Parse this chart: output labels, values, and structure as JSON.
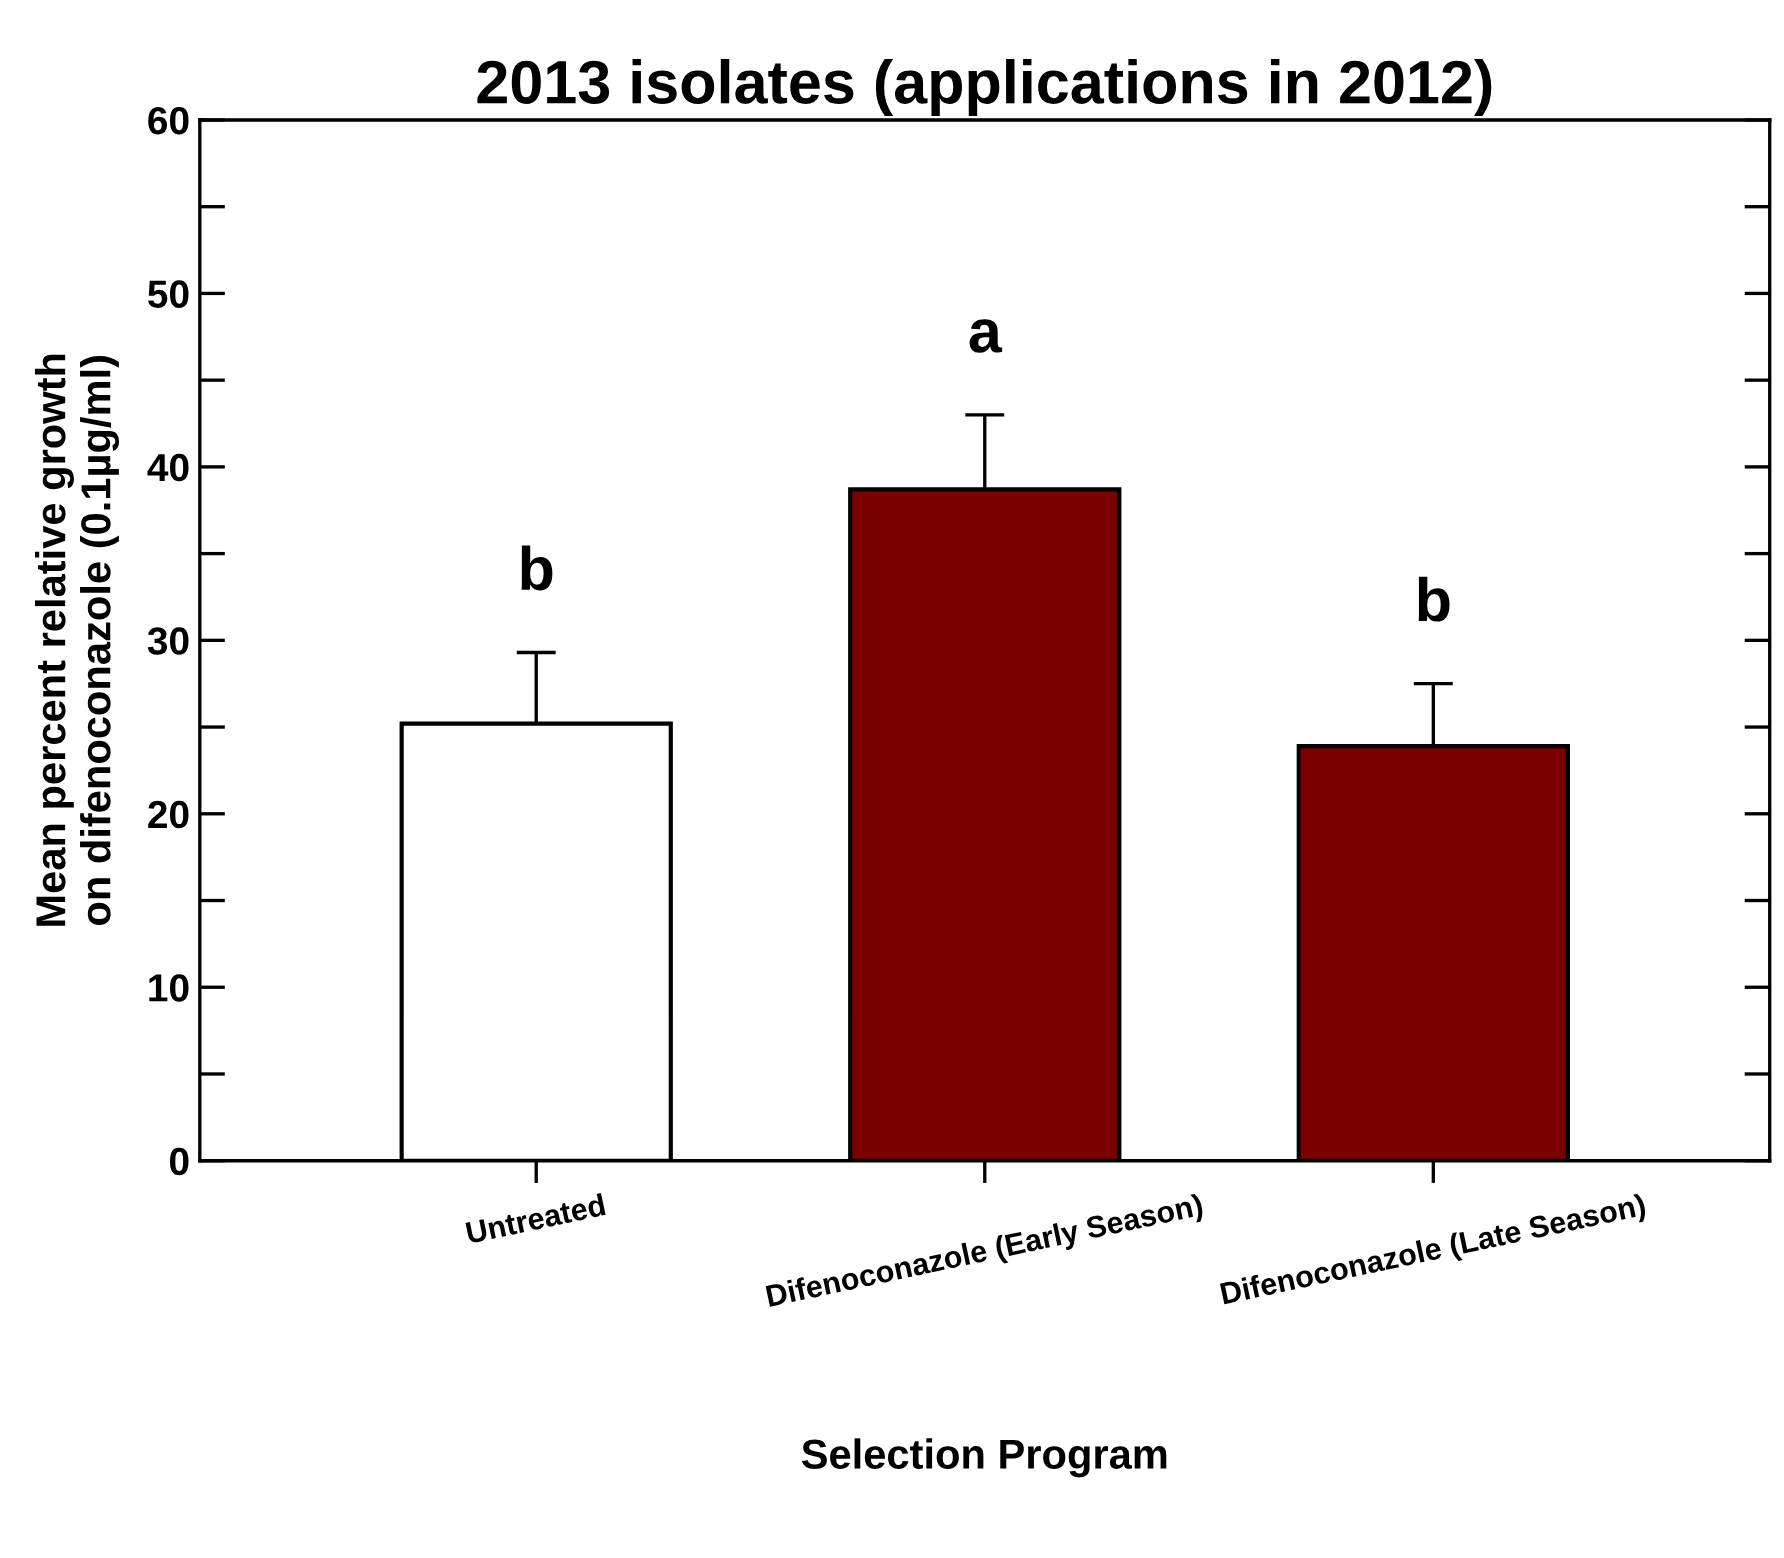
{
  "chart_data": {
    "type": "bar",
    "title": "2013 isolates (applications in 2012)",
    "xlabel": "Selection Program",
    "ylabel": "Mean percent relative growth\non difenoconazole (0.1µg/ml)",
    "categories": [
      "Untreated",
      "Difenoconazole (Early Season)",
      "Difenoconazole (Late Season)"
    ],
    "values": [
      25.2,
      38.7,
      23.9
    ],
    "errors": [
      4.1,
      4.3,
      3.6
    ],
    "colors": [
      "#ffffff",
      "#7a0000",
      "#7a0000"
    ],
    "ylim": [
      0,
      60
    ],
    "yticks": [
      0,
      {
        "value": 5,
        "label": null
      },
      10,
      {
        "value": 15,
        "label": null
      },
      20,
      {
        "value": 25,
        "label": null
      },
      30,
      {
        "value": 35,
        "label": null
      },
      40,
      {
        "value": 45,
        "label": null
      },
      50,
      {
        "value": 55,
        "label": null
      },
      60
    ],
    "grid": false,
    "annotations": [
      "b",
      "a",
      "b"
    ]
  }
}
